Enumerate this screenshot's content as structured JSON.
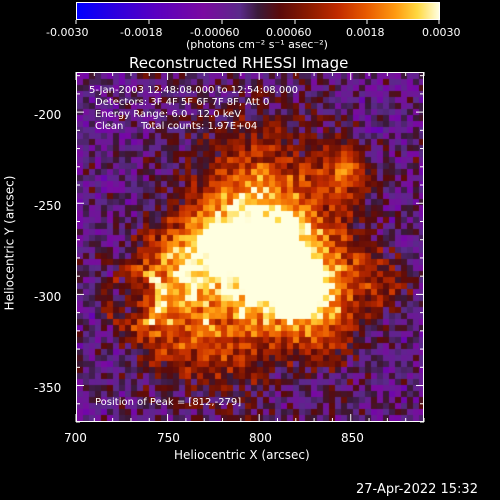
{
  "colorbar": {
    "ticks": [
      "-0.0030",
      "-0.0018",
      "-0.00060",
      "0.00060",
      "0.0018",
      "0.0030"
    ],
    "units": "(photons cm⁻² s⁻¹ asec⁻²)"
  },
  "chart_data": {
    "type": "heatmap",
    "title": "Reconstructed RHESSI Image",
    "xlabel": "Heliocentric X (arcsec)",
    "ylabel": "Heliocentric Y (arcsec)",
    "xlim": [
      700,
      890
    ],
    "ylim": [
      -370,
      -178
    ],
    "xticks": [
      "700",
      "750",
      "800",
      "850"
    ],
    "yticks": [
      "-200",
      "-250",
      "-300",
      "-350"
    ],
    "colorbar_range": [
      -0.003,
      0.003
    ],
    "peak": [
      812,
      -279
    ],
    "annotations": {
      "time": "5-Jan-2003 12:48:08.000 to 12:54:08.000",
      "detectors": "Detectors: 3F 4F 5F 6F 7F 8F, Att 0",
      "energy": "Energy Range: 6.0 - 12.0 keV",
      "method": "Clean",
      "counts": "Total counts: 1.97E+04",
      "peak_label": "Position of Peak = [812,-279]"
    }
  },
  "footer": {
    "timestamp": "27-Apr-2022 15:32"
  }
}
